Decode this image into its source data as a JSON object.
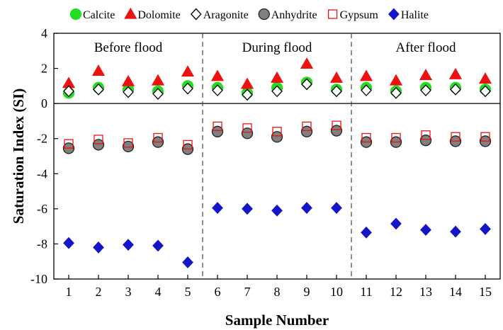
{
  "chart_data": {
    "type": "scatter",
    "xlabel": "Sample Number",
    "ylabel": "Saturation Index (SI)",
    "xlim": [
      0.5,
      15.5
    ],
    "ylim": [
      -10,
      4
    ],
    "x": [
      1,
      2,
      3,
      4,
      5,
      6,
      7,
      8,
      9,
      10,
      11,
      12,
      13,
      14,
      15
    ],
    "x_ticks": [
      "1",
      "2",
      "3",
      "4",
      "5",
      "6",
      "7",
      "8",
      "9",
      "10",
      "11",
      "12",
      "13",
      "14",
      "15"
    ],
    "y_ticks": [
      "4",
      "2",
      "0",
      "-2",
      "-4",
      "-6",
      "-8",
      "-10"
    ],
    "y_tick_values": [
      4,
      2,
      0,
      -2,
      -4,
      -6,
      -8,
      -10
    ],
    "zero_line": true,
    "grid": false,
    "legend_position": "top",
    "periods": [
      {
        "label": "Before flood",
        "from": 1,
        "to": 5
      },
      {
        "label": "During flood",
        "from": 6,
        "to": 10
      },
      {
        "label": "After flood",
        "from": 11,
        "to": 15
      }
    ],
    "period_dividers_at": [
      5.5,
      10.5
    ],
    "series": [
      {
        "name": "Calcite",
        "marker": "circle",
        "fill": "#22dd22",
        "stroke": "#22dd22",
        "values": [
          0.6,
          0.9,
          0.8,
          0.7,
          1.0,
          0.9,
          0.6,
          0.9,
          1.2,
          0.8,
          0.9,
          0.7,
          0.9,
          0.9,
          0.8
        ]
      },
      {
        "name": "Dolomite",
        "marker": "triangle",
        "fill": "#ee1111",
        "stroke": "#ee1111",
        "values": [
          1.15,
          1.85,
          1.25,
          1.3,
          1.8,
          1.55,
          1.1,
          1.45,
          2.25,
          1.45,
          1.55,
          1.3,
          1.6,
          1.65,
          1.4
        ]
      },
      {
        "name": "Aragonite",
        "marker": "diamond",
        "fill": "#ffffff",
        "stroke": "#000000",
        "values": [
          0.7,
          0.8,
          0.65,
          0.55,
          0.85,
          0.75,
          0.5,
          0.7,
          1.1,
          0.7,
          0.75,
          0.6,
          0.75,
          0.8,
          0.7
        ]
      },
      {
        "name": "Anhydrite",
        "marker": "circle",
        "fill": "#808080",
        "stroke": "#222222",
        "values": [
          -2.55,
          -2.35,
          -2.45,
          -2.2,
          -2.6,
          -1.6,
          -1.7,
          -1.9,
          -1.6,
          -1.55,
          -2.2,
          -2.2,
          -2.1,
          -2.15,
          -2.15
        ]
      },
      {
        "name": "Gypsum",
        "marker": "square",
        "fill": "none",
        "stroke": "#ee1111",
        "values": [
          -2.3,
          -2.05,
          -2.25,
          -1.95,
          -2.35,
          -1.3,
          -1.4,
          -1.6,
          -1.3,
          -1.25,
          -1.95,
          -1.95,
          -1.8,
          -1.9,
          -1.9
        ]
      },
      {
        "name": "Halite",
        "marker": "diamond",
        "fill": "#1515c8",
        "stroke": "#1515c8",
        "values": [
          -7.95,
          -8.2,
          -8.05,
          -8.1,
          -9.05,
          -5.95,
          -6.0,
          -6.1,
          -5.95,
          -5.95,
          -7.35,
          -6.85,
          -7.2,
          -7.3,
          -7.15
        ]
      }
    ]
  }
}
